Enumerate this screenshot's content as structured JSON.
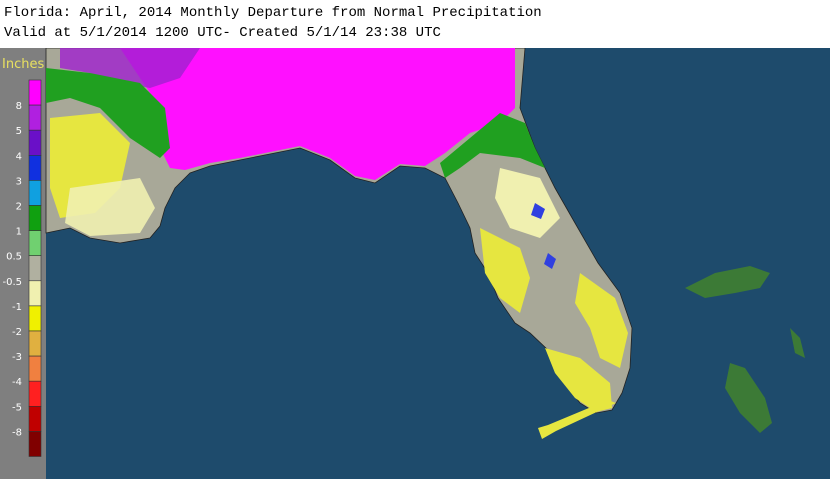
{
  "header": {
    "title": "Florida: April, 2014 Monthly Departure from Normal Precipitation",
    "subtitle": "Valid at 5/1/2014 1200 UTC- Created 5/1/14 23:38 UTC"
  },
  "legend": {
    "title": "Inches",
    "labels": [
      "8",
      "5",
      "4",
      "3",
      "2",
      "1",
      "0.5",
      "-0.5",
      "-1",
      "-2",
      "-3",
      "-4",
      "-5",
      "-8"
    ],
    "colors": [
      "#ff00ff",
      "#b020e0",
      "#6a10c8",
      "#1030e0",
      "#10a0e0",
      "#10a010",
      "#70d070",
      "#b0b0a0",
      "#f0f0b0",
      "#f0f000",
      "#e0b040",
      "#f08040",
      "#ff2020",
      "#c00000",
      "#800000"
    ]
  }
}
